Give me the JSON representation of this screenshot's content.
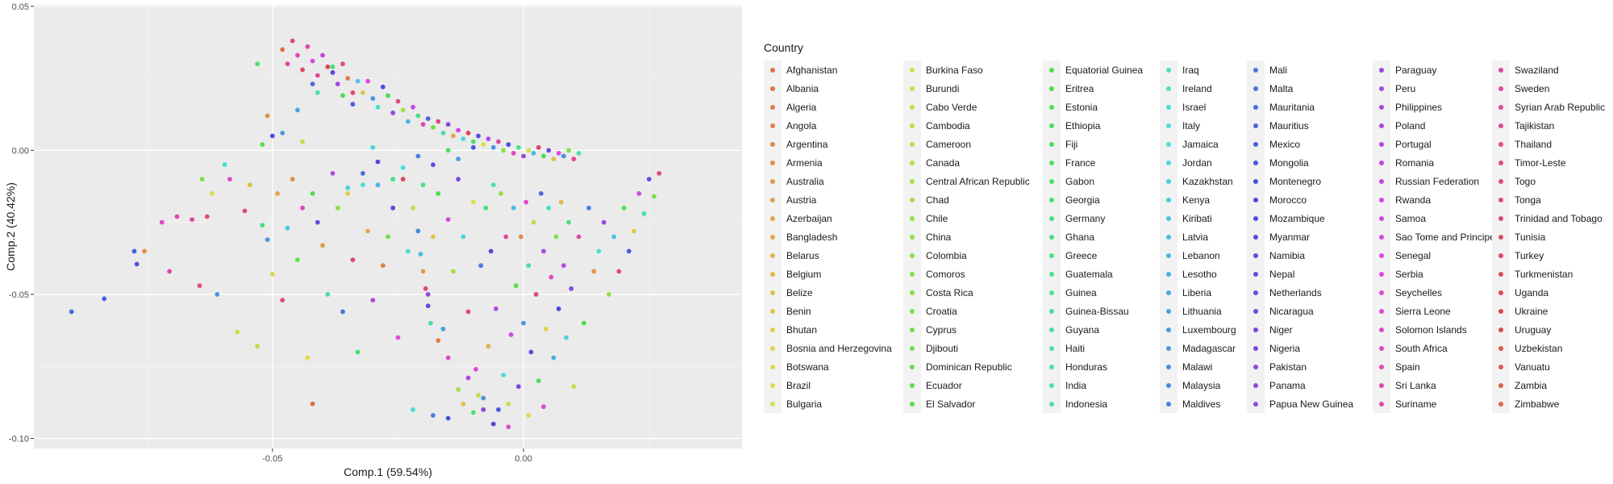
{
  "chart_data": {
    "type": "scatter",
    "xlabel": "Comp.1 (59.54%)",
    "ylabel": "Comp.2 (40.42%)",
    "xlim": [
      -0.0975,
      0.0435
    ],
    "ylim": [
      -0.1035,
      0.0505
    ],
    "x_ticks": [
      -0.05,
      0.0
    ],
    "x_tick_labels": [
      "-0.05",
      "0.00"
    ],
    "y_ticks": [
      0.05,
      0.0,
      -0.05,
      -0.1
    ],
    "y_tick_labels": [
      "0.05",
      "0.00",
      "-0.05",
      "-0.10"
    ],
    "grid": true,
    "legend": {
      "title": "Country",
      "placement": "right",
      "items": [
        "Afghanistan",
        "Albania",
        "Algeria",
        "Angola",
        "Argentina",
        "Armenia",
        "Australia",
        "Austria",
        "Azerbaijan",
        "Bangladesh",
        "Belarus",
        "Belgium",
        "Belize",
        "Benin",
        "Bhutan",
        "Bosnia and Herzegovina",
        "Botswana",
        "Brazil",
        "Bulgaria",
        "Burkina Faso",
        "Burundi",
        "Cabo Verde",
        "Cambodia",
        "Cameroon",
        "Canada",
        "Central African Republic",
        "Chad",
        "Chile",
        "China",
        "Colombia",
        "Comoros",
        "Costa Rica",
        "Croatia",
        "Cyprus",
        "Djibouti",
        "Dominican Republic",
        "Ecuador",
        "El Salvador",
        "Equatorial Guinea",
        "Eritrea",
        "Estonia",
        "Ethiopia",
        "Fiji",
        "France",
        "Gabon",
        "Georgia",
        "Germany",
        "Ghana",
        "Greece",
        "Guatemala",
        "Guinea",
        "Guinea-Bissau",
        "Guyana",
        "Haiti",
        "Honduras",
        "India",
        "Indonesia",
        "Iraq",
        "Ireland",
        "Israel",
        "Italy",
        "Jamaica",
        "Jordan",
        "Kazakhstan",
        "Kenya",
        "Kiribati",
        "Latvia",
        "Lebanon",
        "Lesotho",
        "Liberia",
        "Lithuania",
        "Luxembourg",
        "Madagascar",
        "Malawi",
        "Malaysia",
        "Maldives",
        "Mali",
        "Malta",
        "Mauritania",
        "Mauritius",
        "Mexico",
        "Mongolia",
        "Montenegro",
        "Morocco",
        "Mozambique",
        "Myanmar",
        "Namibia",
        "Nepal",
        "Netherlands",
        "Nicaragua",
        "Niger",
        "Nigeria",
        "Pakistan",
        "Panama",
        "Papua New Guinea",
        "Paraguay",
        "Peru",
        "Philippines",
        "Poland",
        "Portugal",
        "Romania",
        "Russian Federation",
        "Rwanda",
        "Samoa",
        "Sao Tome and Principe",
        "Senegal",
        "Serbia",
        "Seychelles",
        "Sierra Leone",
        "Solomon Islands",
        "South Africa",
        "Spain",
        "Sri Lanka",
        "Suriname",
        "Swaziland",
        "Sweden",
        "Syrian Arab Republic",
        "Tajikistan",
        "Thailand",
        "Timor-Leste",
        "Togo",
        "Tonga",
        "Trinidad and Tobago",
        "Tunisia",
        "Turkey",
        "Turkmenistan",
        "Uganda",
        "Ukraine",
        "Uruguay",
        "Uzbekistan",
        "Vanuatu",
        "Zambia",
        "Zimbabwe"
      ]
    },
    "points": [
      [
        -0.09,
        -0.056,
        79
      ],
      [
        -0.0835,
        -0.0515,
        80
      ],
      [
        -0.0775,
        -0.035,
        80
      ],
      [
        -0.077,
        -0.0395,
        82
      ],
      [
        -0.0755,
        -0.035,
        5
      ],
      [
        -0.072,
        -0.025,
        110
      ],
      [
        -0.0705,
        -0.042,
        112
      ],
      [
        -0.069,
        -0.023,
        112
      ],
      [
        -0.066,
        -0.024,
        115
      ],
      [
        -0.0645,
        -0.047,
        118
      ],
      [
        -0.063,
        -0.023,
        120
      ],
      [
        -0.061,
        -0.05,
        72
      ],
      [
        -0.064,
        -0.01,
        32
      ],
      [
        -0.062,
        -0.015,
        17
      ],
      [
        -0.0595,
        -0.005,
        60
      ],
      [
        -0.0585,
        -0.01,
        110
      ],
      [
        -0.057,
        -0.063,
        19
      ],
      [
        -0.0555,
        -0.021,
        120
      ],
      [
        -0.0545,
        -0.012,
        12
      ],
      [
        -0.053,
        -0.068,
        22
      ],
      [
        -0.052,
        -0.026,
        46
      ],
      [
        -0.051,
        -0.031,
        72
      ],
      [
        -0.05,
        -0.043,
        15
      ],
      [
        -0.049,
        -0.015,
        8
      ],
      [
        -0.048,
        -0.052,
        118
      ],
      [
        -0.047,
        -0.027,
        64
      ],
      [
        -0.046,
        -0.01,
        5
      ],
      [
        -0.045,
        -0.038,
        35
      ],
      [
        -0.044,
        -0.02,
        111
      ],
      [
        -0.043,
        -0.072,
        16
      ],
      [
        -0.042,
        -0.015,
        40
      ],
      [
        -0.041,
        -0.025,
        88
      ],
      [
        -0.04,
        -0.033,
        7
      ],
      [
        -0.039,
        -0.05,
        52
      ],
      [
        -0.038,
        -0.008,
        100
      ],
      [
        -0.037,
        -0.02,
        28
      ],
      [
        -0.036,
        -0.056,
        77
      ],
      [
        -0.035,
        -0.015,
        14
      ],
      [
        -0.034,
        -0.038,
        122
      ],
      [
        -0.033,
        -0.07,
        44
      ],
      [
        -0.032,
        -0.012,
        61
      ],
      [
        -0.031,
        -0.028,
        9
      ],
      [
        -0.03,
        -0.052,
        98
      ],
      [
        -0.029,
        -0.012,
        67
      ],
      [
        -0.028,
        -0.04,
        3
      ],
      [
        -0.027,
        -0.03,
        33
      ],
      [
        -0.026,
        -0.02,
        85
      ],
      [
        -0.025,
        -0.065,
        105
      ],
      [
        -0.024,
        -0.01,
        125
      ],
      [
        -0.023,
        -0.035,
        57
      ],
      [
        -0.022,
        -0.02,
        21
      ],
      [
        -0.021,
        -0.028,
        74
      ],
      [
        -0.02,
        -0.012,
        49
      ],
      [
        -0.019,
        -0.05,
        95
      ],
      [
        -0.018,
        -0.03,
        13
      ],
      [
        -0.017,
        -0.015,
        38
      ],
      [
        -0.016,
        -0.062,
        70
      ],
      [
        -0.015,
        -0.024,
        104
      ],
      [
        -0.014,
        -0.042,
        26
      ],
      [
        -0.013,
        -0.01,
        90
      ],
      [
        -0.012,
        -0.03,
        62
      ],
      [
        -0.011,
        -0.056,
        120
      ],
      [
        -0.01,
        -0.018,
        17
      ],
      [
        -0.0095,
        -0.076,
        107
      ],
      [
        -0.009,
        -0.085,
        22
      ],
      [
        -0.0085,
        -0.04,
        76
      ],
      [
        -0.008,
        -0.09,
        93
      ],
      [
        -0.0075,
        -0.02,
        45
      ],
      [
        -0.007,
        -0.068,
        10
      ],
      [
        -0.0065,
        -0.035,
        84
      ],
      [
        -0.006,
        -0.012,
        54
      ],
      [
        -0.0055,
        -0.055,
        99
      ],
      [
        -0.005,
        -0.09,
        81
      ],
      [
        -0.0045,
        -0.015,
        29
      ],
      [
        -0.004,
        -0.078,
        59
      ],
      [
        -0.0035,
        -0.03,
        115
      ],
      [
        -0.003,
        -0.088,
        19
      ],
      [
        -0.0025,
        -0.064,
        102
      ],
      [
        -0.002,
        -0.02,
        66
      ],
      [
        -0.0015,
        -0.047,
        36
      ],
      [
        -0.001,
        -0.082,
        91
      ],
      [
        -0.0005,
        -0.03,
        4
      ],
      [
        0.0,
        -0.06,
        72
      ],
      [
        0.0005,
        -0.018,
        108
      ],
      [
        0.001,
        -0.04,
        51
      ],
      [
        0.0015,
        -0.07,
        87
      ],
      [
        0.002,
        -0.025,
        23
      ],
      [
        0.0025,
        -0.05,
        123
      ],
      [
        0.003,
        -0.08,
        41
      ],
      [
        0.0035,
        -0.015,
        78
      ],
      [
        0.004,
        -0.035,
        97
      ],
      [
        0.0045,
        -0.062,
        15
      ],
      [
        0.005,
        -0.02,
        56
      ],
      [
        0.0055,
        -0.044,
        110
      ],
      [
        0.006,
        -0.072,
        68
      ],
      [
        0.0065,
        -0.03,
        30
      ],
      [
        0.007,
        -0.055,
        84
      ],
      [
        0.0075,
        -0.018,
        11
      ],
      [
        0.008,
        -0.04,
        100
      ],
      [
        0.0085,
        -0.065,
        63
      ],
      [
        0.009,
        -0.025,
        47
      ],
      [
        0.0095,
        -0.048,
        92
      ],
      [
        0.01,
        -0.082,
        20
      ],
      [
        0.011,
        -0.03,
        113
      ],
      [
        0.012,
        -0.06,
        39
      ],
      [
        0.013,
        -0.02,
        75
      ],
      [
        0.014,
        -0.042,
        6
      ],
      [
        0.015,
        -0.035,
        58
      ],
      [
        0.016,
        -0.025,
        96
      ],
      [
        0.017,
        -0.05,
        27
      ],
      [
        0.018,
        -0.03,
        65
      ],
      [
        0.019,
        -0.042,
        118
      ],
      [
        0.02,
        -0.02,
        42
      ],
      [
        0.021,
        -0.035,
        80
      ],
      [
        0.022,
        -0.028,
        13
      ],
      [
        0.023,
        -0.015,
        103
      ],
      [
        0.024,
        -0.022,
        53
      ],
      [
        0.025,
        -0.01,
        88
      ],
      [
        0.026,
        -0.016,
        31
      ],
      [
        0.027,
        -0.008,
        120
      ],
      [
        -0.042,
        -0.088,
        0
      ],
      [
        -0.003,
        -0.096,
        107
      ],
      [
        -0.015,
        -0.093,
        82
      ],
      [
        -0.01,
        -0.091,
        45
      ],
      [
        -0.018,
        -0.092,
        75
      ],
      [
        -0.022,
        -0.09,
        57
      ],
      [
        -0.006,
        -0.095,
        84
      ],
      [
        0.001,
        -0.092,
        16
      ],
      [
        0.004,
        -0.089,
        108
      ],
      [
        -0.012,
        -0.088,
        12
      ],
      [
        -0.013,
        -0.083,
        25
      ],
      [
        -0.008,
        -0.086,
        72
      ],
      [
        -0.011,
        -0.079,
        97
      ],
      [
        -0.015,
        -0.072,
        110
      ],
      [
        -0.017,
        -0.066,
        3
      ],
      [
        -0.0185,
        -0.06,
        52
      ],
      [
        -0.019,
        -0.054,
        88
      ],
      [
        -0.0195,
        -0.048,
        121
      ],
      [
        -0.02,
        -0.042,
        7
      ],
      [
        -0.0205,
        -0.036,
        66
      ],
      [
        -0.048,
        0.035,
        0
      ],
      [
        -0.047,
        0.03,
        114
      ],
      [
        -0.046,
        0.038,
        120
      ],
      [
        -0.045,
        0.033,
        110
      ],
      [
        -0.044,
        0.028,
        124
      ],
      [
        -0.043,
        0.036,
        112
      ],
      [
        -0.042,
        0.031,
        104
      ],
      [
        -0.041,
        0.026,
        117
      ],
      [
        -0.04,
        0.033,
        100
      ],
      [
        -0.039,
        0.029,
        126
      ],
      [
        -0.038,
        0.027,
        85
      ],
      [
        -0.037,
        0.023,
        96
      ],
      [
        -0.036,
        0.03,
        116
      ],
      [
        -0.035,
        0.025,
        2
      ],
      [
        -0.034,
        0.02,
        122
      ],
      [
        -0.033,
        0.024,
        65
      ],
      [
        -0.032,
        0.02,
        13
      ],
      [
        -0.031,
        0.024,
        106
      ],
      [
        -0.03,
        0.018,
        72
      ],
      [
        -0.029,
        0.015,
        58
      ],
      [
        -0.028,
        0.022,
        82
      ],
      [
        -0.027,
        0.019,
        39
      ],
      [
        -0.026,
        0.013,
        93
      ],
      [
        -0.025,
        0.017,
        118
      ],
      [
        -0.024,
        0.014,
        24
      ],
      [
        -0.023,
        0.01,
        67
      ],
      [
        -0.022,
        0.015,
        101
      ],
      [
        -0.021,
        0.012,
        47
      ],
      [
        -0.02,
        0.009,
        112
      ],
      [
        -0.019,
        0.011,
        79
      ],
      [
        -0.018,
        0.008,
        33
      ],
      [
        -0.017,
        0.01,
        119
      ],
      [
        -0.016,
        0.006,
        55
      ],
      [
        -0.015,
        0.009,
        92
      ],
      [
        -0.014,
        0.005,
        8
      ],
      [
        -0.013,
        0.007,
        103
      ],
      [
        -0.012,
        0.004,
        62
      ],
      [
        -0.011,
        0.006,
        125
      ],
      [
        -0.01,
        0.003,
        44
      ],
      [
        -0.009,
        0.005,
        86
      ],
      [
        -0.008,
        0.002,
        17
      ],
      [
        -0.007,
        0.004,
        98
      ],
      [
        -0.006,
        0.001,
        71
      ],
      [
        -0.005,
        0.003,
        114
      ],
      [
        -0.004,
        0.0,
        29
      ],
      [
        -0.003,
        0.002,
        82
      ],
      [
        -0.002,
        -0.001,
        109
      ],
      [
        -0.001,
        0.001,
        50
      ],
      [
        0.0,
        -0.002,
        95
      ],
      [
        0.001,
        0.0,
        19
      ],
      [
        0.002,
        -0.001,
        67
      ],
      [
        0.003,
        0.001,
        123
      ],
      [
        0.004,
        -0.002,
        40
      ],
      [
        0.005,
        0.0,
        88
      ],
      [
        0.006,
        -0.003,
        12
      ],
      [
        0.007,
        -0.001,
        105
      ],
      [
        0.008,
        -0.002,
        73
      ],
      [
        0.009,
        0.0,
        31
      ],
      [
        0.01,
        -0.003,
        117
      ],
      [
        0.011,
        -0.001,
        56
      ],
      [
        -0.035,
        -0.013,
        63
      ],
      [
        -0.032,
        -0.008,
        78
      ],
      [
        -0.029,
        -0.004,
        84
      ],
      [
        -0.026,
        -0.01,
        48
      ],
      [
        -0.024,
        -0.006,
        60
      ],
      [
        -0.021,
        -0.002,
        75
      ],
      [
        -0.018,
        -0.005,
        89
      ],
      [
        -0.015,
        0.0,
        43
      ],
      [
        -0.013,
        -0.003,
        70
      ],
      [
        -0.01,
        0.001,
        81
      ],
      [
        -0.038,
        0.029,
        46
      ],
      [
        -0.036,
        0.019,
        40
      ],
      [
        -0.041,
        0.02,
        55
      ],
      [
        -0.03,
        0.001,
        62
      ],
      [
        -0.034,
        0.016,
        80
      ],
      [
        -0.05,
        0.005,
        82
      ],
      [
        -0.052,
        0.002,
        37
      ],
      [
        -0.051,
        0.012,
        5
      ],
      [
        -0.053,
        0.03,
        45
      ],
      [
        -0.048,
        0.006,
        71
      ],
      [
        -0.045,
        0.014,
        70
      ],
      [
        -0.044,
        0.003,
        21
      ],
      [
        -0.042,
        0.023,
        78
      ]
    ]
  }
}
